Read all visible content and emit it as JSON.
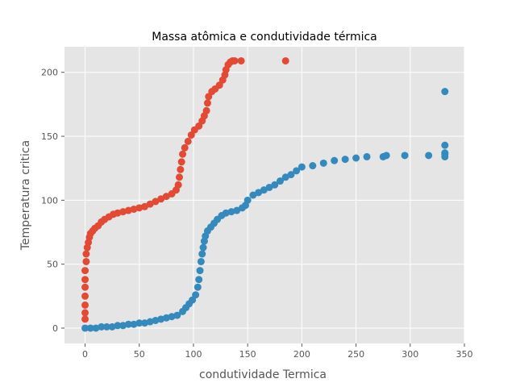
{
  "chart_data": {
    "type": "scatter",
    "title": "Massa atômica e condutividade térmica",
    "xlabel": "condutividade Termica",
    "ylabel": "Temperatura critica",
    "xlim": [
      -19,
      350
    ],
    "ylim": [
      -12,
      220
    ],
    "x_ticks": [
      0,
      50,
      100,
      150,
      200,
      250,
      300,
      350
    ],
    "y_ticks": [
      0,
      50,
      100,
      150,
      200
    ],
    "grid": true,
    "background": "#e5e5e5",
    "series": [
      {
        "color": "#e24a33",
        "points": [
          [
            0,
            7
          ],
          [
            0,
            12
          ],
          [
            0,
            18
          ],
          [
            0,
            25
          ],
          [
            0,
            32
          ],
          [
            0,
            38
          ],
          [
            0,
            45
          ],
          [
            1,
            52
          ],
          [
            1,
            58
          ],
          [
            2,
            63
          ],
          [
            3,
            67
          ],
          [
            4,
            71
          ],
          [
            5,
            74
          ],
          [
            7,
            76
          ],
          [
            9,
            78
          ],
          [
            12,
            80
          ],
          [
            15,
            83
          ],
          [
            18,
            85
          ],
          [
            22,
            87
          ],
          [
            26,
            89
          ],
          [
            30,
            90
          ],
          [
            35,
            91
          ],
          [
            40,
            92
          ],
          [
            45,
            93
          ],
          [
            50,
            94
          ],
          [
            55,
            95
          ],
          [
            60,
            97
          ],
          [
            65,
            99
          ],
          [
            70,
            101
          ],
          [
            75,
            103
          ],
          [
            80,
            105
          ],
          [
            84,
            108
          ],
          [
            86,
            112
          ],
          [
            87,
            118
          ],
          [
            88,
            124
          ],
          [
            89,
            130
          ],
          [
            90,
            136
          ],
          [
            92,
            141
          ],
          [
            95,
            146
          ],
          [
            98,
            151
          ],
          [
            101,
            155
          ],
          [
            105,
            158
          ],
          [
            108,
            162
          ],
          [
            110,
            166
          ],
          [
            112,
            170
          ],
          [
            113,
            176
          ],
          [
            114,
            181
          ],
          [
            117,
            185
          ],
          [
            120,
            187
          ],
          [
            124,
            190
          ],
          [
            127,
            194
          ],
          [
            129,
            198
          ],
          [
            130,
            202
          ],
          [
            132,
            206
          ],
          [
            134,
            208
          ],
          [
            136,
            209
          ],
          [
            138,
            209
          ],
          [
            144,
            209
          ],
          [
            185,
            209
          ]
        ]
      },
      {
        "color": "#348abd",
        "points": [
          [
            0,
            0
          ],
          [
            5,
            0
          ],
          [
            10,
            0
          ],
          [
            15,
            1
          ],
          [
            20,
            1
          ],
          [
            25,
            1
          ],
          [
            30,
            2
          ],
          [
            35,
            2
          ],
          [
            40,
            3
          ],
          [
            45,
            3
          ],
          [
            50,
            4
          ],
          [
            55,
            4
          ],
          [
            60,
            5
          ],
          [
            65,
            6
          ],
          [
            70,
            7
          ],
          [
            75,
            8
          ],
          [
            80,
            9
          ],
          [
            85,
            10
          ],
          [
            90,
            13
          ],
          [
            93,
            16
          ],
          [
            96,
            19
          ],
          [
            99,
            22
          ],
          [
            102,
            26
          ],
          [
            104,
            32
          ],
          [
            105,
            38
          ],
          [
            106,
            45
          ],
          [
            107,
            52
          ],
          [
            108,
            58
          ],
          [
            109,
            63
          ],
          [
            110,
            68
          ],
          [
            111,
            72
          ],
          [
            113,
            76
          ],
          [
            116,
            79
          ],
          [
            119,
            82
          ],
          [
            122,
            85
          ],
          [
            126,
            88
          ],
          [
            130,
            90
          ],
          [
            135,
            91
          ],
          [
            140,
            92
          ],
          [
            145,
            94
          ],
          [
            148,
            96
          ],
          [
            150,
            100
          ],
          [
            155,
            104
          ],
          [
            160,
            106
          ],
          [
            165,
            108
          ],
          [
            170,
            110
          ],
          [
            175,
            112
          ],
          [
            180,
            115
          ],
          [
            185,
            118
          ],
          [
            190,
            120
          ],
          [
            195,
            123
          ],
          [
            200,
            126
          ],
          [
            210,
            127
          ],
          [
            220,
            129
          ],
          [
            230,
            131
          ],
          [
            240,
            132
          ],
          [
            250,
            133
          ],
          [
            260,
            134
          ],
          [
            275,
            134
          ],
          [
            278,
            135
          ],
          [
            295,
            135
          ],
          [
            317,
            135
          ],
          [
            332,
            134
          ],
          [
            332,
            136
          ],
          [
            332,
            137
          ],
          [
            332,
            143
          ],
          [
            332,
            185
          ]
        ]
      }
    ]
  }
}
